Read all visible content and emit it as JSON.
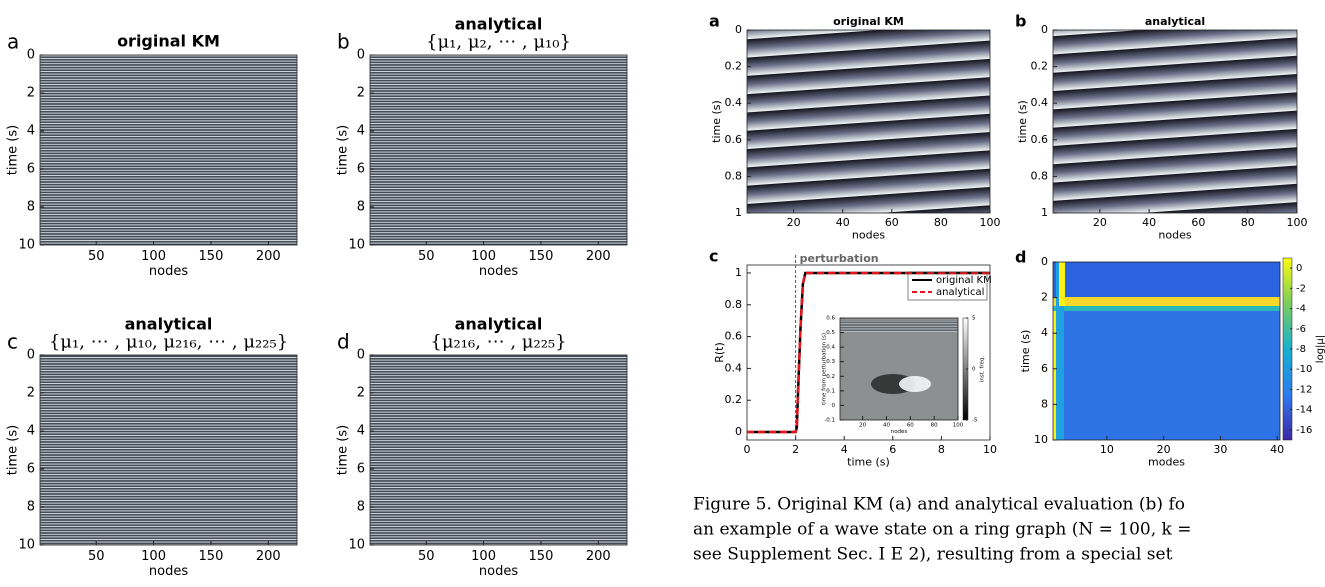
{
  "left_figure": {
    "panels": [
      {
        "type": "heatmap",
        "letter": "a",
        "title": "original KM",
        "xlabel": "nodes",
        "ylabel": "time (s)",
        "xlim": [
          1,
          225
        ],
        "ylim": [
          0,
          10
        ],
        "y_reversed": true,
        "xticks": [
          50,
          100,
          150,
          200
        ],
        "yticks": [
          0,
          2,
          4,
          6,
          8,
          10
        ]
      },
      {
        "type": "heatmap",
        "letter": "b",
        "title": "analytical",
        "subtitle": "{μ₁, μ₂, ⋯ , μ₁₀}",
        "xlabel": "nodes",
        "ylabel": "time (s)",
        "xlim": [
          1,
          225
        ],
        "ylim": [
          0,
          10
        ],
        "y_reversed": true,
        "xticks": [
          50,
          100,
          150,
          200
        ],
        "yticks": [
          0,
          2,
          4,
          6,
          8,
          10
        ]
      },
      {
        "type": "heatmap",
        "letter": "c",
        "title": "analytical",
        "subtitle": "{μ₁, ⋯ , μ₁₀, μ₂₁₆, ⋯ , μ₂₂₅}",
        "xlabel": "nodes",
        "ylabel": "time (s)",
        "xlim": [
          1,
          225
        ],
        "ylim": [
          0,
          10
        ],
        "y_reversed": true,
        "xticks": [
          50,
          100,
          150,
          200
        ],
        "yticks": [
          0,
          2,
          4,
          6,
          8,
          10
        ]
      },
      {
        "type": "heatmap",
        "letter": "d",
        "title": "analytical",
        "subtitle": "{μ₂₁₆, ⋯ , μ₂₂₅}",
        "xlabel": "nodes",
        "ylabel": "time (s)",
        "xlim": [
          1,
          225
        ],
        "ylim": [
          0,
          10
        ],
        "y_reversed": true,
        "xticks": [
          50,
          100,
          150,
          200
        ],
        "yticks": [
          0,
          2,
          4,
          6,
          8,
          10
        ]
      }
    ]
  },
  "right_figure": {
    "panels": [
      {
        "type": "heatmap",
        "letter": "a",
        "title": "original KM",
        "xlabel": "nodes",
        "ylabel": "time (s)",
        "xlim": [
          1,
          100
        ],
        "ylim": [
          0,
          1
        ],
        "y_reversed": true,
        "xticks": [
          20,
          40,
          60,
          80,
          100
        ],
        "yticks": [
          0,
          0.2,
          0.4,
          0.6,
          0.8,
          1
        ]
      },
      {
        "type": "heatmap",
        "letter": "b",
        "title": "analytical",
        "xlabel": "nodes",
        "ylabel": "time (s)",
        "xlim": [
          1,
          100
        ],
        "ylim": [
          0,
          1
        ],
        "y_reversed": true,
        "xticks": [
          20,
          40,
          60,
          80,
          100
        ],
        "yticks": [
          0,
          0.2,
          0.4,
          0.6,
          0.8,
          1
        ]
      },
      {
        "type": "line",
        "letter": "c",
        "annotation": "perturbation",
        "perturbation_time": 2,
        "xlabel": "time (s)",
        "ylabel": "R(t)",
        "xlim": [
          0,
          10
        ],
        "ylim": [
          -0.05,
          1.05
        ],
        "xticks": [
          0,
          2,
          4,
          6,
          8,
          10
        ],
        "yticks": [
          0,
          0.2,
          0.4,
          0.6,
          0.8,
          1
        ],
        "x": [
          0,
          1,
          2,
          2.05,
          2.1,
          2.2,
          2.3,
          2.4,
          2.5,
          3,
          4,
          5,
          6,
          7,
          8,
          9,
          10
        ],
        "series": [
          {
            "name": "original KM",
            "color": "#000000",
            "values": [
              0,
              0,
              0,
              0.03,
              0.25,
              0.65,
              0.93,
              1,
              1,
              1,
              1,
              1,
              1,
              1,
              1,
              1,
              1
            ]
          },
          {
            "name": "analytical",
            "color": "#e8141b",
            "values": [
              0,
              0,
              0,
              0.03,
              0.25,
              0.65,
              0.93,
              1,
              1,
              1,
              1,
              1,
              1,
              1,
              1,
              1,
              1
            ]
          }
        ],
        "inset": {
          "xlabel": "nodes",
          "ylabel": "time from perturbation (s)",
          "colorbar_label": "inst. freq.",
          "xlim": [
            1,
            100
          ],
          "ylim": [
            -0.1,
            0.6
          ],
          "xticks": [
            20,
            40,
            60,
            80,
            100
          ],
          "yticks": [
            -0.1,
            0,
            0.1,
            0.2,
            0.3,
            0.4,
            0.5,
            0.6
          ],
          "colorbar_lim": [
            -5,
            5
          ],
          "colorbar_ticks": [
            5,
            0,
            -5
          ]
        }
      },
      {
        "type": "heatmap",
        "letter": "d",
        "xlabel": "modes",
        "ylabel": "time (s)",
        "xlim": [
          0.5,
          40.5
        ],
        "ylim": [
          0,
          10
        ],
        "y_reversed": true,
        "xticks": [
          10,
          20,
          30,
          40
        ],
        "yticks": [
          0,
          2,
          4,
          6,
          8,
          10
        ],
        "colorbar_label": "log|μ|",
        "colorbar_lim": [
          -17,
          1
        ],
        "colorbar_ticks": [
          0,
          -2,
          -4,
          -6,
          -8,
          -10,
          -12,
          -14,
          -16
        ]
      }
    ]
  },
  "caption": [
    "Figure 5.  Original KM (a) and analytical evaluation (b) fo",
    "an example of a wave state on a ring graph (N = 100, k =",
    "see Supplement Sec. I E 2), resulting from a special set"
  ]
}
